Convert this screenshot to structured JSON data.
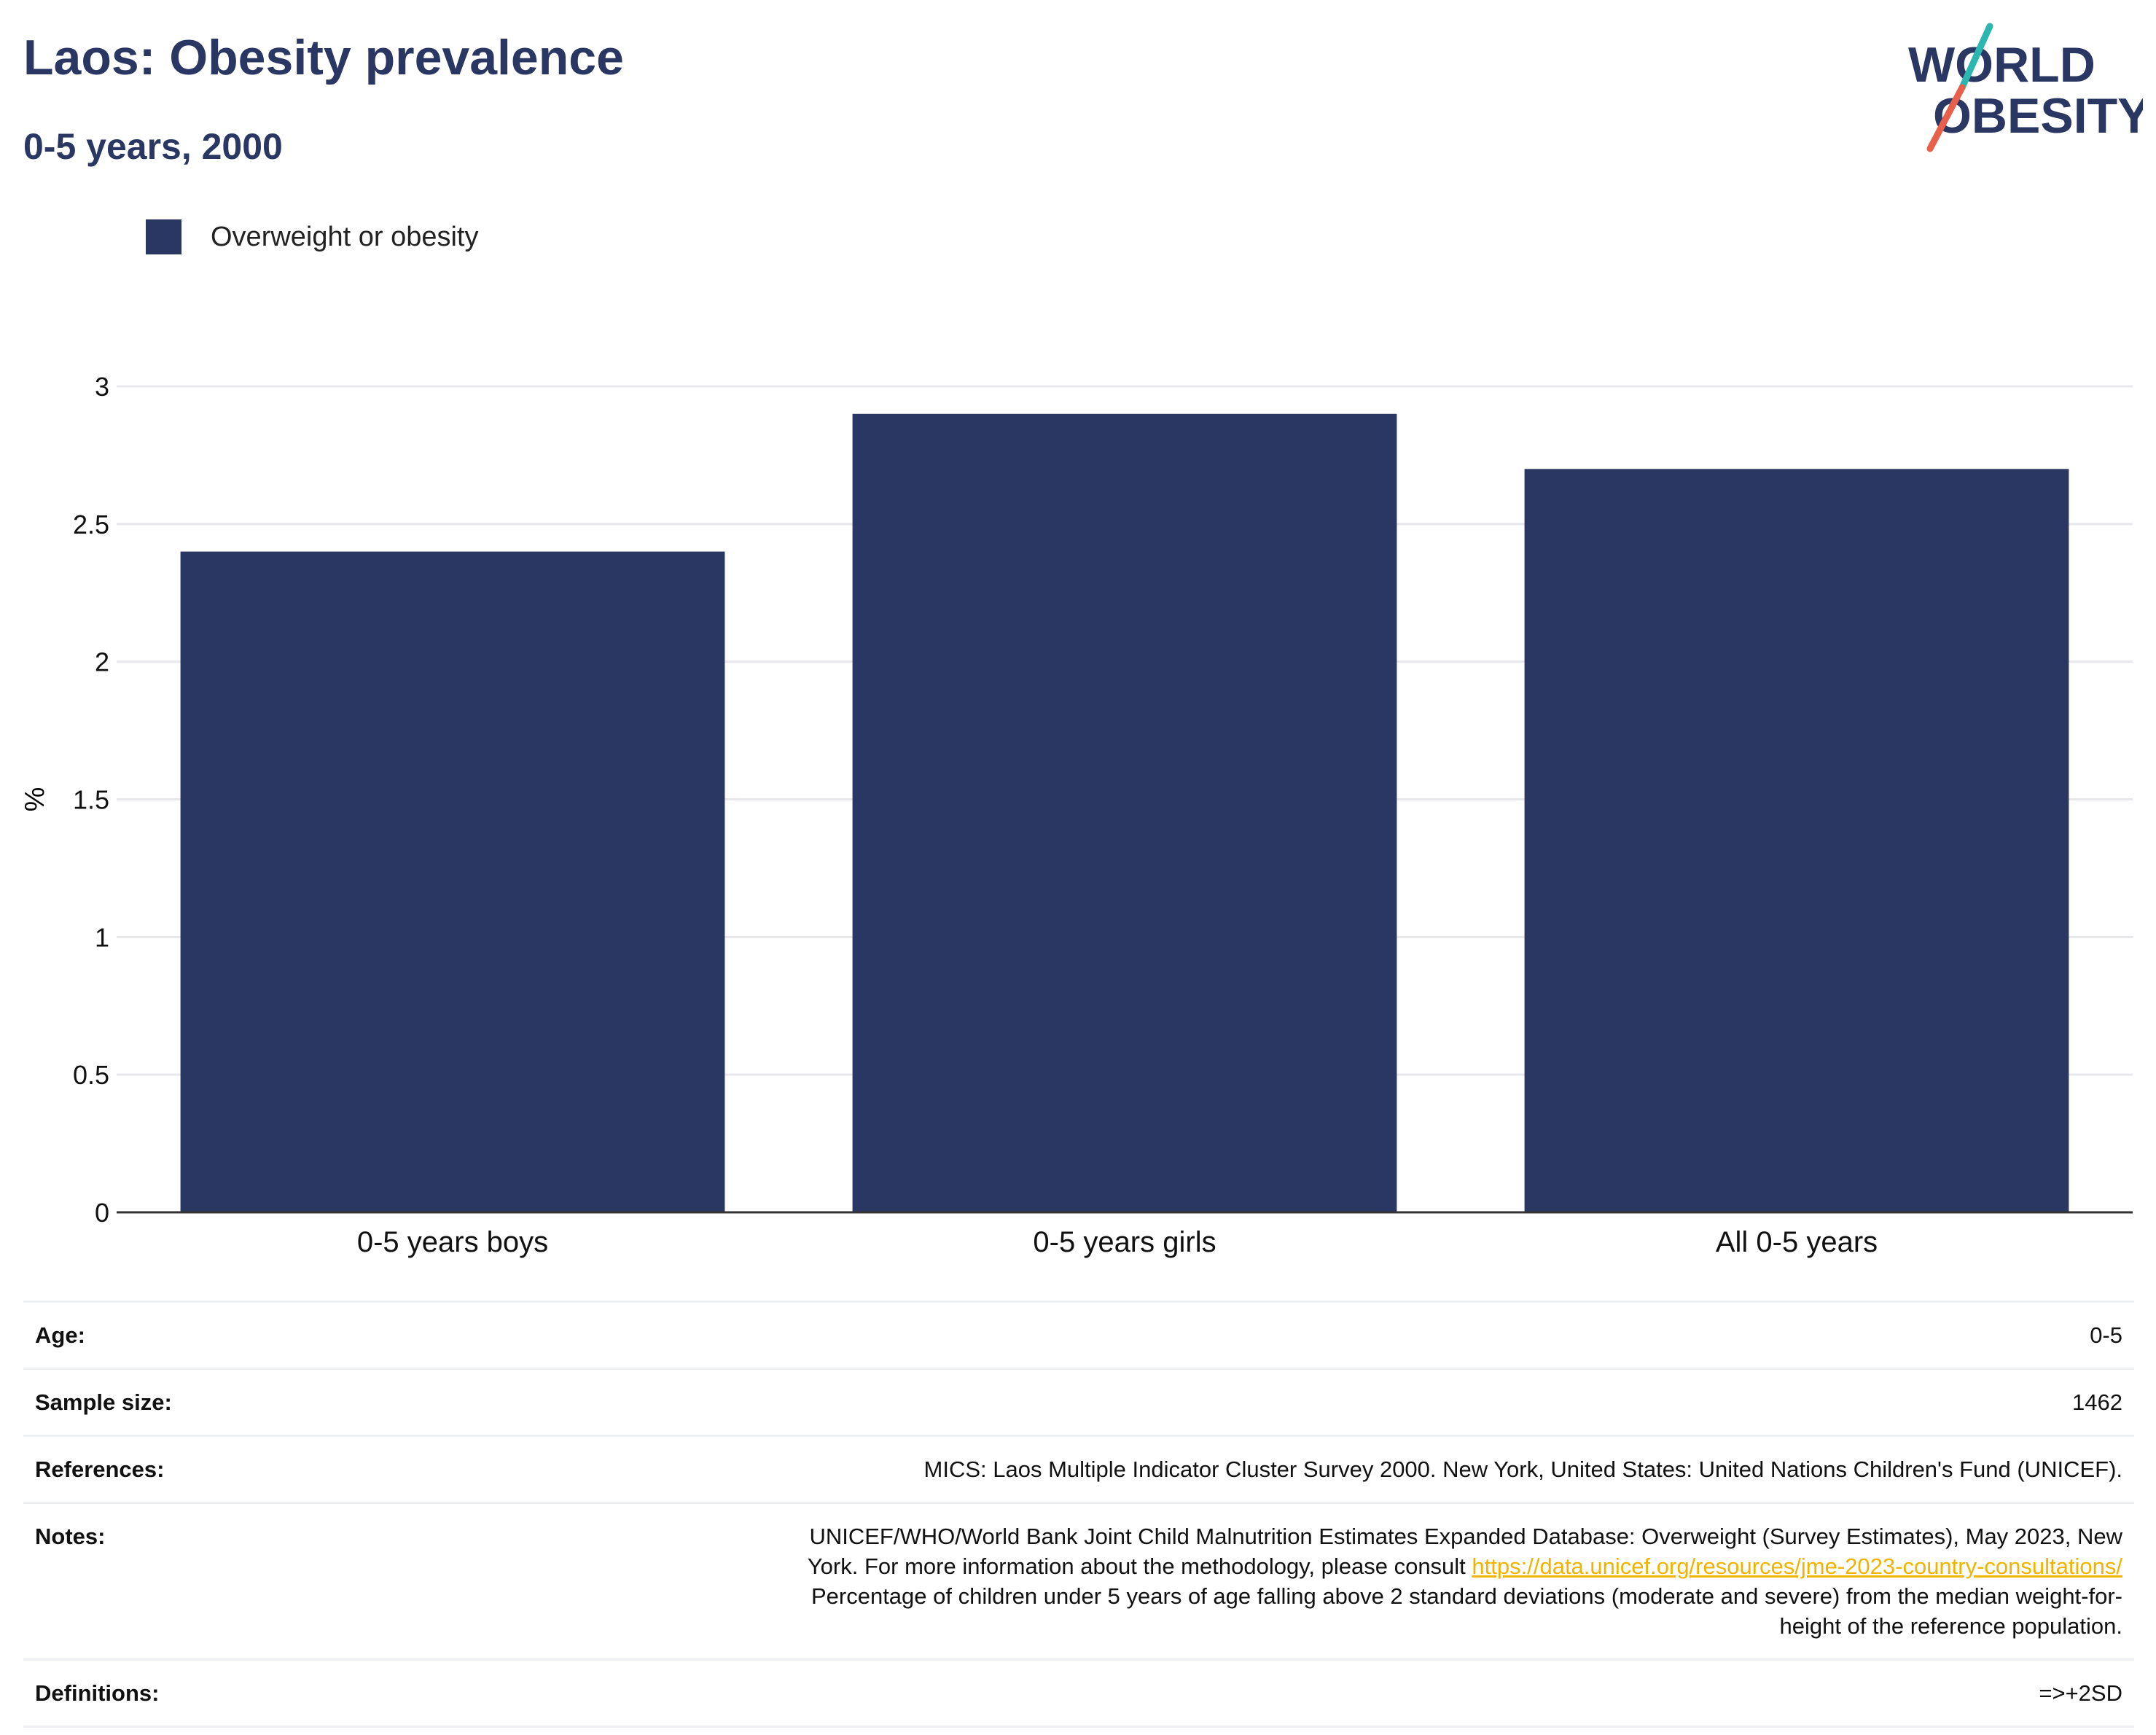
{
  "header": {
    "title": "Laos: Obesity prevalence",
    "subtitle": "0-5 years, 2000",
    "logo_line1": "WORLD",
    "logo_line2": "OBESITY"
  },
  "legend": {
    "label": "Overweight or obesity",
    "color": "#2b3763"
  },
  "chart_data": {
    "type": "bar",
    "categories": [
      "0-5 years boys",
      "0-5 years girls",
      "All 0-5 years"
    ],
    "series": [
      {
        "name": "Overweight or obesity",
        "values": [
          2.4,
          2.9,
          2.7
        ]
      }
    ],
    "ylabel": "%",
    "xlabel": "",
    "ylim": [
      0,
      3
    ],
    "yticks": [
      0,
      0.5,
      1,
      1.5,
      2,
      2.5,
      3
    ],
    "ytick_labels": [
      "0",
      "0.5",
      "1",
      "1.5",
      "2",
      "2.5",
      "3"
    ],
    "grid": true,
    "legend_position": "top-left",
    "bar_color": "#2b3763"
  },
  "info": {
    "age_label": "Age:",
    "age_value": "0-5",
    "sample_label": "Sample size:",
    "sample_value": "1462",
    "references_label": "References:",
    "references_value": "MICS: Laos Multiple Indicator Cluster Survey 2000. New York, United States: United Nations Children's Fund (UNICEF).",
    "notes_label": "Notes:",
    "notes_line1": "UNICEF/WHO/World Bank Joint Child Malnutrition Estimates Expanded Database: Overweight (Survey Estimates), May 2023, New",
    "notes_line2_prefix": "York. For more information about the methodology, please consult ",
    "notes_link": "https://data.unicef.org/resources/jme-2023-country-consultations/",
    "notes_line3": "Percentage of children under 5 years of age falling above 2 standard deviations (moderate and severe) from the median weight-for-",
    "notes_line4": "height of the reference population.",
    "definitions_label": "Definitions:",
    "definitions_value": "=>+2SD"
  }
}
